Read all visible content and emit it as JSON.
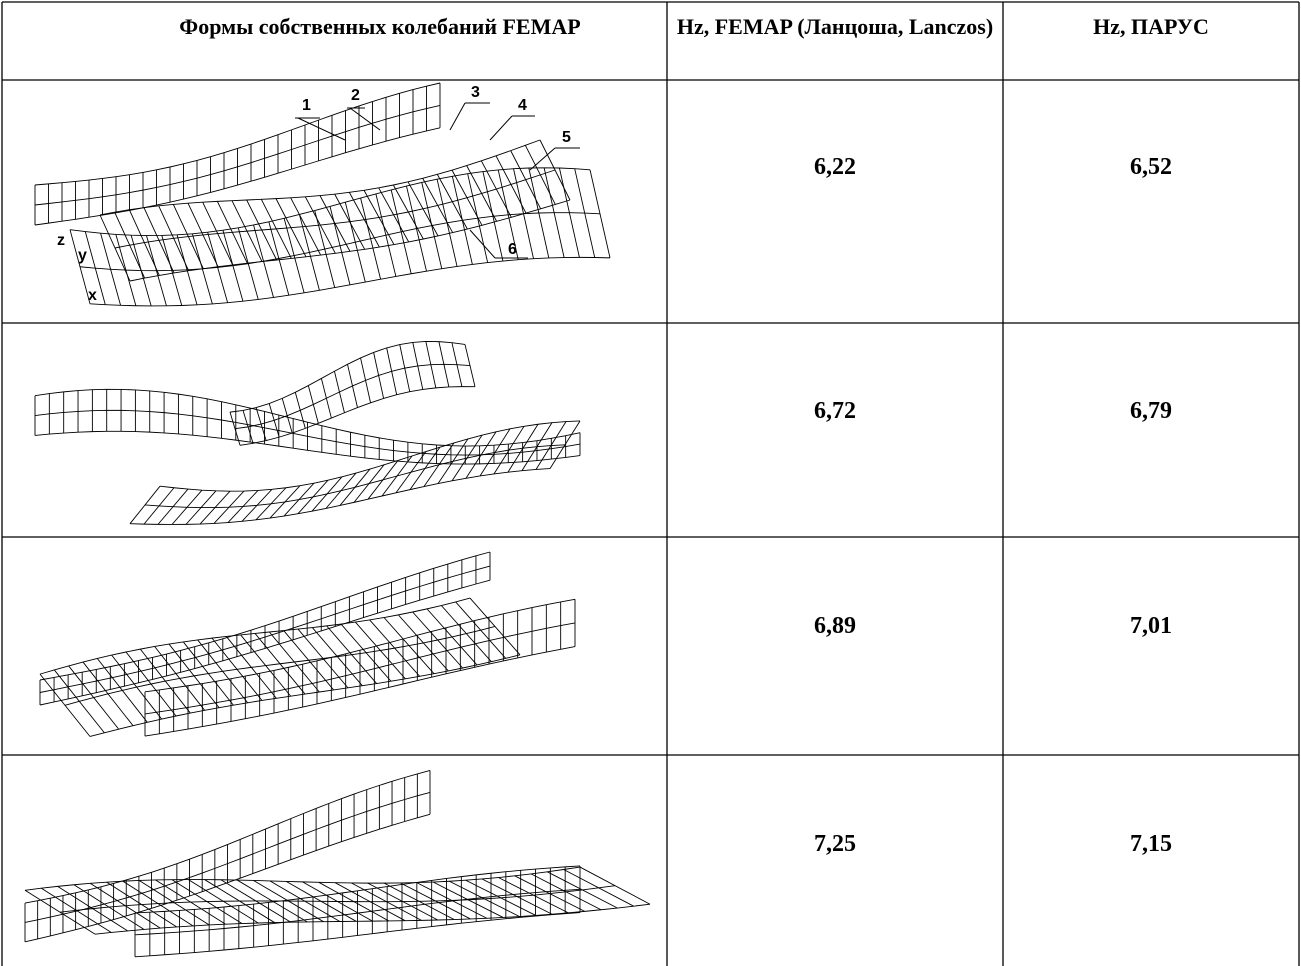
{
  "table": {
    "header": [
      "Формы собственных колебаний  FEMAP",
      "Hz, FEMAP (Ланцоша, Lanczos)",
      "Hz, ПАРУС"
    ],
    "rows": [
      {
        "values": [
          "6,22",
          "6,52"
        ],
        "figure_labels": [
          "1",
          "2",
          "3",
          "4",
          "5",
          "6"
        ],
        "axis_labels": [
          "z",
          "y",
          "x"
        ]
      },
      {
        "values": [
          "6,72",
          "6,79"
        ]
      },
      {
        "values": [
          "6,89",
          "7,01"
        ]
      },
      {
        "values": [
          "7,25",
          "7,15"
        ]
      }
    ]
  }
}
